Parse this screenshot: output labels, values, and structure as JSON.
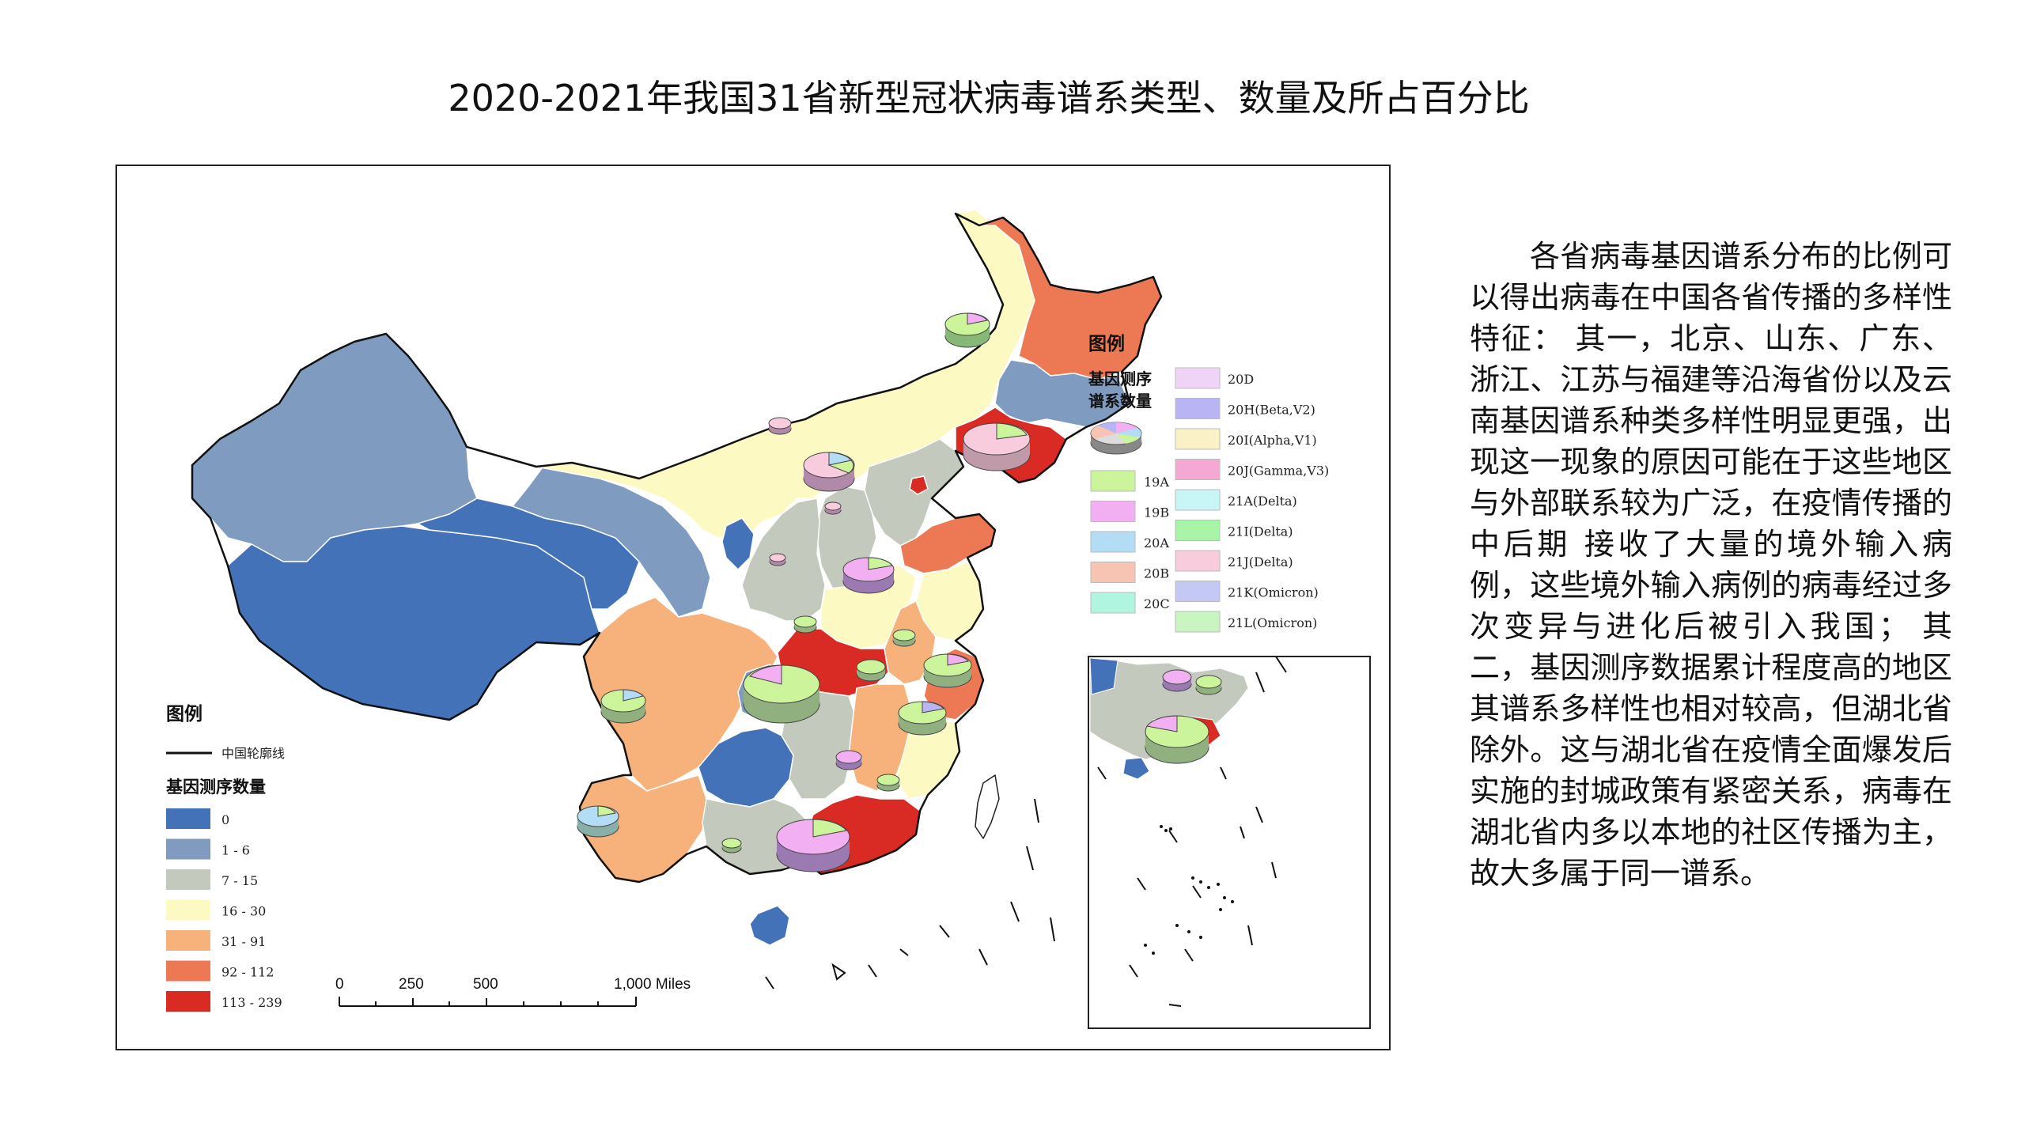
{
  "title": "2020-2021年我国31省新型冠状病毒谱系类型、数量及所占百分比",
  "map": {
    "legend_left": {
      "title": "图例",
      "outline_label": "中国轮廓线",
      "count_title": "基因测序数量",
      "classes": [
        {
          "label": "0",
          "color": "#4472b8"
        },
        {
          "label": "1 - 6",
          "color": "#7f9bc0"
        },
        {
          "label": "7 - 15",
          "color": "#c3c9bd"
        },
        {
          "label": "16 - 30",
          "color": "#fdf9c3"
        },
        {
          "label": "31 - 91",
          "color": "#f7b17a"
        },
        {
          "label": "92 - 112",
          "color": "#ec7953"
        },
        {
          "label": "113 - 239",
          "color": "#d92a24"
        }
      ]
    },
    "legend_right": {
      "title": "图例",
      "pie_label_line1": "基因测序",
      "pie_label_line2": "谱系数量",
      "lineages": [
        {
          "label": "19A",
          "color": "#ccf59b"
        },
        {
          "label": "19B",
          "color": "#f2b0f2"
        },
        {
          "label": "20A",
          "color": "#b3dcf5"
        },
        {
          "label": "20B",
          "color": "#f7c3b3"
        },
        {
          "label": "20C",
          "color": "#b0f5df"
        },
        {
          "label": "20D",
          "color": "#f0d4f7"
        },
        {
          "label": "20H(Beta,V2)",
          "color": "#b9b5f5"
        },
        {
          "label": "20I(Alpha,V1)",
          "color": "#fbf1c6"
        },
        {
          "label": "20J(Gamma,V3)",
          "color": "#f5a8d3"
        },
        {
          "label": "21A(Delta)",
          "color": "#c8f6f6"
        },
        {
          "label": "21I(Delta)",
          "color": "#a8f5a8"
        },
        {
          "label": "21J(Delta)",
          "color": "#f8ccdc"
        },
        {
          "label": "21K(Omicron)",
          "color": "#c4c8f5"
        },
        {
          "label": "21L(Omicron)",
          "color": "#c9f5c0"
        }
      ]
    },
    "scale_bar": {
      "ticks": [
        "0",
        "250",
        "500",
        "1,000 Miles"
      ]
    }
  },
  "side_text": "各省病毒基因谱系分布的比例可以得出病毒在中国各省传播的多样性特征： 其一，北京、山东、广东、浙江、江苏与福建等沿海省份以及云南基因谱系种类多样性明显更强，出现这一现象的原因可能在于这些地区与外部联系较为广泛，在疫情传播的中后期 接收了大量的境外输入病例，这些境外输入病例的病毒经过多次变异与进化后被引入我国； 其二，基因测序数据累计程度高的地区其谱系多样性也相对较高，但湖北省除外。这与湖北省在疫情全面爆发后实施的封城政策有紧密关系，病毒在湖北省内多以本地的社区传播为主，故大多属于同一谱系。"
}
